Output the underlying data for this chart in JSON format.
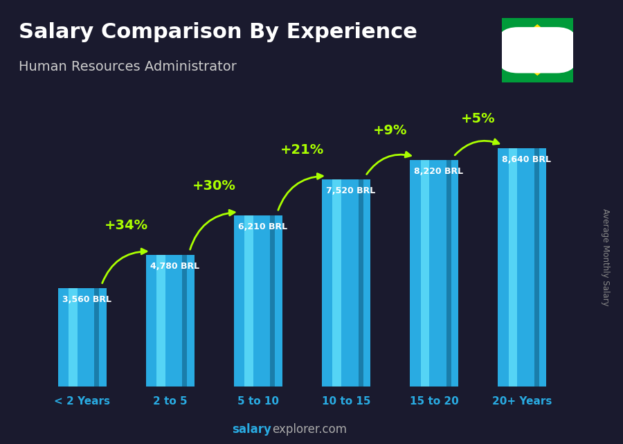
{
  "title": "Salary Comparison By Experience",
  "subtitle": "Human Resources Administrator",
  "categories": [
    "< 2 Years",
    "2 to 5",
    "5 to 10",
    "10 to 15",
    "15 to 20",
    "20+ Years"
  ],
  "values": [
    3560,
    4780,
    6210,
    7520,
    8220,
    8640
  ],
  "value_labels": [
    "3,560 BRL",
    "4,780 BRL",
    "6,210 BRL",
    "7,520 BRL",
    "8,220 BRL",
    "8,640 BRL"
  ],
  "pct_labels": [
    "+34%",
    "+30%",
    "+21%",
    "+9%",
    "+5%"
  ],
  "bar_color_main": "#29ABE2",
  "bar_color_highlight": "#55D4F5",
  "bar_color_shadow": "#1A7DAA",
  "background_color": "#1a1a2e",
  "title_color": "#FFFFFF",
  "subtitle_color": "#CCCCCC",
  "label_color": "#FFFFFF",
  "pct_color": "#AAFF00",
  "footer_salary_color": "#29ABE2",
  "footer_explorer_color": "#AAAAAA",
  "ylabel": "Average Monthly Salary",
  "ylim": [
    0,
    10800
  ],
  "flag_green": "#009B3A",
  "flag_yellow": "#FEDF00",
  "flag_blue": "#002776"
}
